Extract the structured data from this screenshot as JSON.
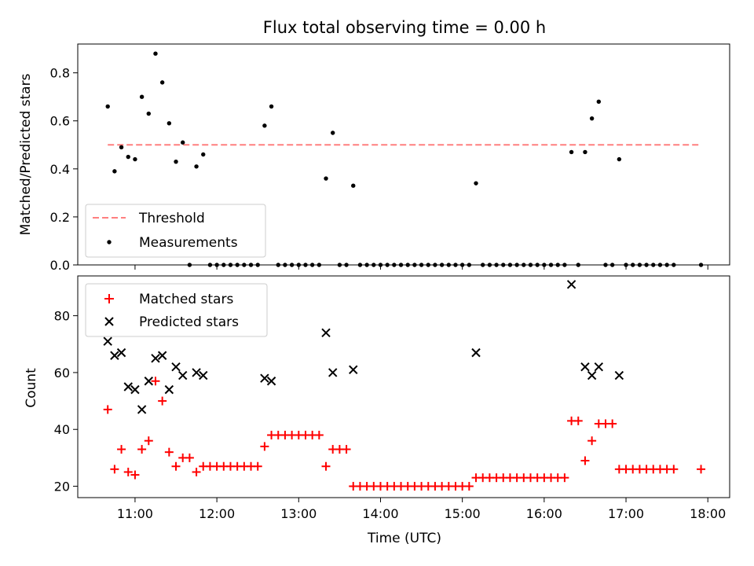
{
  "chart_data": [
    {
      "type": "scatter",
      "title": "Flux total observing time = 0.00 h",
      "xlabel": "",
      "ylabel": "Matched/Predicted stars",
      "xlim": [
        "10:18",
        "18:16"
      ],
      "ylim": [
        0,
        0.92
      ],
      "yticks": [
        0.0,
        0.2,
        0.4,
        0.6,
        0.8
      ],
      "ytick_labels": [
        "0.0",
        "0.2",
        "0.4",
        "0.6",
        "0.8"
      ],
      "legend_position": "lower-left",
      "legend": {
        "threshold_label": "Threshold",
        "measurements_label": "Measurements"
      },
      "threshold": {
        "value": 0.5,
        "x_start": "10:40",
        "x_end": "17:55",
        "color": "#ff7f7f",
        "style": "dashed"
      },
      "series": [
        {
          "name": "Measurements",
          "marker": "dot",
          "color": "#000000",
          "points": [
            [
              "10:40",
              0.66
            ],
            [
              "10:45",
              0.39
            ],
            [
              "10:50",
              0.49
            ],
            [
              "10:55",
              0.45
            ],
            [
              "11:00",
              0.44
            ],
            [
              "11:05",
              0.7
            ],
            [
              "11:10",
              0.63
            ],
            [
              "11:15",
              0.88
            ],
            [
              "11:20",
              0.76
            ],
            [
              "11:25",
              0.59
            ],
            [
              "11:30",
              0.43
            ],
            [
              "11:35",
              0.51
            ],
            [
              "11:40",
              0.0
            ],
            [
              "11:45",
              0.41
            ],
            [
              "11:50",
              0.46
            ],
            [
              "11:55",
              0.0
            ],
            [
              "12:00",
              0.0
            ],
            [
              "12:05",
              0.0
            ],
            [
              "12:10",
              0.0
            ],
            [
              "12:15",
              0.0
            ],
            [
              "12:20",
              0.0
            ],
            [
              "12:25",
              0.0
            ],
            [
              "12:30",
              0.0
            ],
            [
              "12:35",
              0.58
            ],
            [
              "12:40",
              0.66
            ],
            [
              "12:45",
              0.0
            ],
            [
              "12:50",
              0.0
            ],
            [
              "12:55",
              0.0
            ],
            [
              "13:00",
              0.0
            ],
            [
              "13:05",
              0.0
            ],
            [
              "13:10",
              0.0
            ],
            [
              "13:15",
              0.0
            ],
            [
              "13:20",
              0.36
            ],
            [
              "13:25",
              0.55
            ],
            [
              "13:30",
              0.0
            ],
            [
              "13:35",
              0.0
            ],
            [
              "13:40",
              0.33
            ],
            [
              "13:45",
              0.0
            ],
            [
              "13:50",
              0.0
            ],
            [
              "13:55",
              0.0
            ],
            [
              "14:00",
              0.0
            ],
            [
              "14:05",
              0.0
            ],
            [
              "14:10",
              0.0
            ],
            [
              "14:15",
              0.0
            ],
            [
              "14:20",
              0.0
            ],
            [
              "14:25",
              0.0
            ],
            [
              "14:30",
              0.0
            ],
            [
              "14:35",
              0.0
            ],
            [
              "14:40",
              0.0
            ],
            [
              "14:45",
              0.0
            ],
            [
              "14:50",
              0.0
            ],
            [
              "14:55",
              0.0
            ],
            [
              "15:00",
              0.0
            ],
            [
              "15:05",
              0.0
            ],
            [
              "15:10",
              0.34
            ],
            [
              "15:15",
              0.0
            ],
            [
              "15:20",
              0.0
            ],
            [
              "15:25",
              0.0
            ],
            [
              "15:30",
              0.0
            ],
            [
              "15:35",
              0.0
            ],
            [
              "15:40",
              0.0
            ],
            [
              "15:45",
              0.0
            ],
            [
              "15:50",
              0.0
            ],
            [
              "15:55",
              0.0
            ],
            [
              "16:00",
              0.0
            ],
            [
              "16:05",
              0.0
            ],
            [
              "16:10",
              0.0
            ],
            [
              "16:15",
              0.0
            ],
            [
              "16:20",
              0.47
            ],
            [
              "16:25",
              0.0
            ],
            [
              "16:30",
              0.47
            ],
            [
              "16:35",
              0.61
            ],
            [
              "16:40",
              0.68
            ],
            [
              "16:45",
              0.0
            ],
            [
              "16:50",
              0.0
            ],
            [
              "16:55",
              0.44
            ],
            [
              "17:00",
              0.0
            ],
            [
              "17:05",
              0.0
            ],
            [
              "17:10",
              0.0
            ],
            [
              "17:15",
              0.0
            ],
            [
              "17:20",
              0.0
            ],
            [
              "17:25",
              0.0
            ],
            [
              "17:30",
              0.0
            ],
            [
              "17:35",
              0.0
            ],
            [
              "17:55",
              0.0
            ]
          ]
        }
      ]
    },
    {
      "type": "scatter",
      "title": "",
      "xlabel": "Time (UTC)",
      "ylabel": "Count",
      "xlim": [
        "10:18",
        "18:16"
      ],
      "ylim": [
        16,
        94
      ],
      "yticks": [
        20,
        40,
        60,
        80
      ],
      "ytick_labels": [
        "20",
        "40",
        "60",
        "80"
      ],
      "xticks": [
        "11:00",
        "12:00",
        "13:00",
        "14:00",
        "15:00",
        "16:00",
        "17:00",
        "18:00"
      ],
      "xtick_labels": [
        "11:00",
        "12:00",
        "13:00",
        "14:00",
        "15:00",
        "16:00",
        "17:00",
        "18:00"
      ],
      "legend_position": "upper-left",
      "series": [
        {
          "name": "Matched stars",
          "marker": "plus",
          "color": "#ff0000",
          "points": [
            [
              "10:40",
              47
            ],
            [
              "10:45",
              26
            ],
            [
              "10:50",
              33
            ],
            [
              "10:55",
              25
            ],
            [
              "11:00",
              24
            ],
            [
              "11:05",
              33
            ],
            [
              "11:10",
              36
            ],
            [
              "11:15",
              57
            ],
            [
              "11:20",
              50
            ],
            [
              "11:25",
              32
            ],
            [
              "11:30",
              27
            ],
            [
              "11:35",
              30
            ],
            [
              "11:40",
              30
            ],
            [
              "11:45",
              25
            ],
            [
              "11:50",
              27
            ],
            [
              "11:55",
              27
            ],
            [
              "12:00",
              27
            ],
            [
              "12:05",
              27
            ],
            [
              "12:10",
              27
            ],
            [
              "12:15",
              27
            ],
            [
              "12:20",
              27
            ],
            [
              "12:25",
              27
            ],
            [
              "12:30",
              27
            ],
            [
              "12:35",
              34
            ],
            [
              "12:40",
              38
            ],
            [
              "12:45",
              38
            ],
            [
              "12:50",
              38
            ],
            [
              "12:55",
              38
            ],
            [
              "13:00",
              38
            ],
            [
              "13:05",
              38
            ],
            [
              "13:10",
              38
            ],
            [
              "13:15",
              38
            ],
            [
              "13:20",
              27
            ],
            [
              "13:25",
              33
            ],
            [
              "13:30",
              33
            ],
            [
              "13:35",
              33
            ],
            [
              "13:40",
              20
            ],
            [
              "13:45",
              20
            ],
            [
              "13:50",
              20
            ],
            [
              "13:55",
              20
            ],
            [
              "14:00",
              20
            ],
            [
              "14:05",
              20
            ],
            [
              "14:10",
              20
            ],
            [
              "14:15",
              20
            ],
            [
              "14:20",
              20
            ],
            [
              "14:25",
              20
            ],
            [
              "14:30",
              20
            ],
            [
              "14:35",
              20
            ],
            [
              "14:40",
              20
            ],
            [
              "14:45",
              20
            ],
            [
              "14:50",
              20
            ],
            [
              "14:55",
              20
            ],
            [
              "15:00",
              20
            ],
            [
              "15:05",
              20
            ],
            [
              "15:10",
              23
            ],
            [
              "15:15",
              23
            ],
            [
              "15:20",
              23
            ],
            [
              "15:25",
              23
            ],
            [
              "15:30",
              23
            ],
            [
              "15:35",
              23
            ],
            [
              "15:40",
              23
            ],
            [
              "15:45",
              23
            ],
            [
              "15:50",
              23
            ],
            [
              "15:55",
              23
            ],
            [
              "16:00",
              23
            ],
            [
              "16:05",
              23
            ],
            [
              "16:10",
              23
            ],
            [
              "16:15",
              23
            ],
            [
              "16:20",
              43
            ],
            [
              "16:25",
              43
            ],
            [
              "16:30",
              29
            ],
            [
              "16:35",
              36
            ],
            [
              "16:40",
              42
            ],
            [
              "16:45",
              42
            ],
            [
              "16:50",
              42
            ],
            [
              "16:55",
              26
            ],
            [
              "17:00",
              26
            ],
            [
              "17:05",
              26
            ],
            [
              "17:10",
              26
            ],
            [
              "17:15",
              26
            ],
            [
              "17:20",
              26
            ],
            [
              "17:25",
              26
            ],
            [
              "17:30",
              26
            ],
            [
              "17:35",
              26
            ],
            [
              "17:55",
              26
            ]
          ]
        },
        {
          "name": "Predicted stars",
          "marker": "x",
          "color": "#000000",
          "points": [
            [
              "10:40",
              71
            ],
            [
              "10:45",
              66
            ],
            [
              "10:50",
              67
            ],
            [
              "10:55",
              55
            ],
            [
              "11:00",
              54
            ],
            [
              "11:05",
              47
            ],
            [
              "11:10",
              57
            ],
            [
              "11:15",
              65
            ],
            [
              "11:20",
              66
            ],
            [
              "11:25",
              54
            ],
            [
              "11:30",
              62
            ],
            [
              "11:35",
              59
            ],
            [
              "11:45",
              60
            ],
            [
              "11:50",
              59
            ],
            [
              "12:35",
              58
            ],
            [
              "12:40",
              57
            ],
            [
              "13:20",
              74
            ],
            [
              "13:25",
              60
            ],
            [
              "13:40",
              61
            ],
            [
              "15:10",
              67
            ],
            [
              "16:20",
              91
            ],
            [
              "16:30",
              62
            ],
            [
              "16:35",
              59
            ],
            [
              "16:40",
              62
            ],
            [
              "16:55",
              59
            ]
          ]
        }
      ]
    }
  ]
}
